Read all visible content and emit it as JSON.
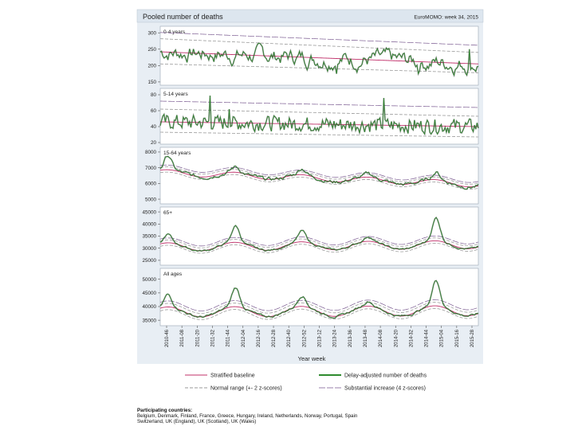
{
  "header": {
    "title": "Pooled number of deaths",
    "source": "EuroMOMO: week 34, 2015"
  },
  "colors": {
    "observed": "#2e8b2e",
    "baseline": "#c0306a",
    "normal_range": "#9a9a9a",
    "substantial": "#7a5a90",
    "trace": "#2a2a2a",
    "header_bg": "#dde6ef",
    "panel_bg": "#ffffff",
    "outer_bg": "#e8eef4"
  },
  "chart_data": {
    "type": "line",
    "xlabel": "Year week",
    "x_ticks": [
      "2010-46",
      "2011-08",
      "2011-20",
      "2011-32",
      "2011-44",
      "2012-04",
      "2012-16",
      "2012-28",
      "2012-40",
      "2012-52",
      "2013-12",
      "2013-24",
      "2013-36",
      "2013-48",
      "2014-08",
      "2014-20",
      "2014-32",
      "2014-44",
      "2015-04",
      "2015-16",
      "2015-28"
    ],
    "legend": {
      "baseline": "Stratified baseline",
      "observed": "Delay-adjusted number of deaths",
      "normal_range": "Normal range (+- 2 z-scores)",
      "substantial": "Substantial increase (4 z-scores)"
    },
    "panels": [
      {
        "label": "0-4 years",
        "ylim": [
          140,
          320
        ],
        "yticks": [
          "300",
          "250",
          "200",
          "150"
        ],
        "ytick_values": [
          300,
          250,
          200,
          150
        ],
        "baseline": [
          242,
          205
        ],
        "normal_range": [
          [
            205,
            178
          ],
          [
            282,
            240
          ]
        ],
        "substantial": [
          301,
          262
        ],
        "noise": 18,
        "noise_smooth": 0.75,
        "spikes": [
          [
            138,
            175
          ],
          [
            202,
            175
          ],
          [
            242,
            250
          ]
        ],
        "seasonal": 0
      },
      {
        "label": "5-14 years",
        "ylim": [
          18,
          88
        ],
        "yticks": [
          "80",
          "60",
          "40",
          "20"
        ],
        "ytick_values": [
          80,
          60,
          40,
          20
        ],
        "baseline": [
          46,
          40
        ],
        "normal_range": [
          [
            33,
            27
          ],
          [
            62,
            53
          ]
        ],
        "substantial": [
          72,
          64
        ],
        "noise": 9,
        "noise_smooth": 0.2,
        "spikes": [
          [
            39,
            79
          ],
          [
            175,
            76
          ],
          [
            54,
            62
          ]
        ],
        "seasonal": 0
      },
      {
        "label": "15-64 years",
        "ylim": [
          4700,
          8300
        ],
        "yticks": [
          "8000",
          "7000",
          "6000",
          "5000"
        ],
        "ytick_values": [
          8000,
          7000,
          6000,
          5000
        ],
        "baseline": [
          6700,
          5950
        ],
        "normal_range": [
          [
            6550,
            5800
          ],
          [
            6880,
            6120
          ]
        ],
        "substantial": [
          7000,
          6230
        ],
        "seasonal": 380,
        "noise": 90,
        "noise_smooth": 0.7,
        "peaks": [
          [
            6,
            900
          ],
          [
            59,
            350
          ],
          [
            111,
            400
          ],
          [
            163,
            220
          ],
          [
            216,
            480
          ]
        ],
        "spikes": []
      },
      {
        "label": "65+",
        "ylim": [
          23000,
          47000
        ],
        "yticks": [
          "45000",
          "40000",
          "35000",
          "30000",
          "25000"
        ],
        "ytick_values": [
          45000,
          40000,
          35000,
          30000,
          25000
        ],
        "baseline": [
          30500,
          31500
        ],
        "normal_range": [
          [
            29500,
            30500
          ],
          [
            31700,
            32700
          ]
        ],
        "substantial": [
          32500,
          33500
        ],
        "seasonal": 3400,
        "noise": 300,
        "noise_smooth": 0.7,
        "peaks": [
          [
            6,
            3500
          ],
          [
            59,
            6800
          ],
          [
            111,
            4500
          ],
          [
            163,
            2000
          ],
          [
            216,
            9500
          ]
        ],
        "spikes": []
      },
      {
        "label": "All ages",
        "ylim": [
          33000,
          54000
        ],
        "yticks": [
          "50000",
          "45000",
          "40000",
          "35000"
        ],
        "ytick_values": [
          50000,
          45000,
          40000,
          35000
        ],
        "baseline": [
          38000,
          38500
        ],
        "normal_range": [
          [
            37000,
            37500
          ],
          [
            39300,
            39800
          ]
        ],
        "substantial": [
          40200,
          40700
        ],
        "seasonal": 3700,
        "noise": 320,
        "noise_smooth": 0.7,
        "peaks": [
          [
            6,
            4500
          ],
          [
            59,
            7000
          ],
          [
            111,
            4000
          ],
          [
            163,
            1800
          ],
          [
            216,
            9500
          ]
        ],
        "spikes": []
      }
    ]
  },
  "footer": {
    "heading": "Participating countries:",
    "line1": "Belgium, Denmark, Finland, France, Greece, Hungary, Ireland, Netherlands, Norway, Portugal, Spain",
    "line2": "Switzerland, UK (England), UK (Scotland), UK (Wales)"
  }
}
